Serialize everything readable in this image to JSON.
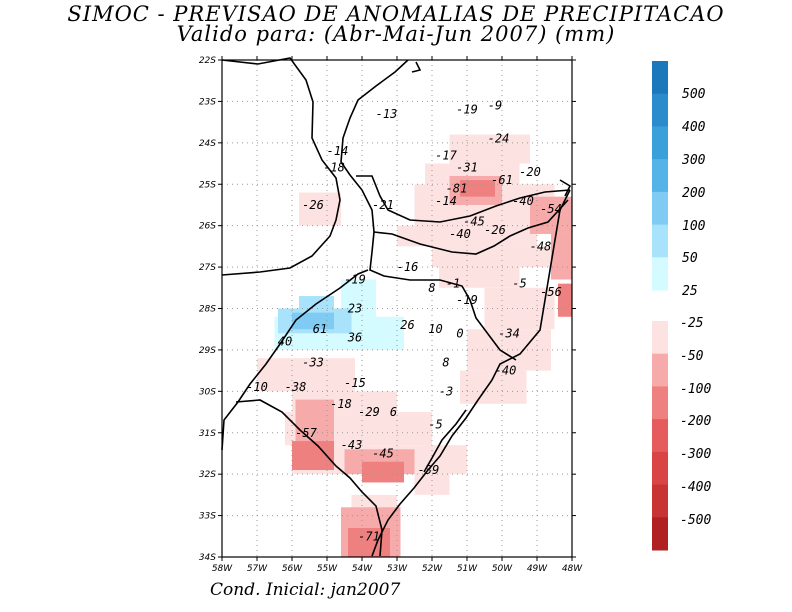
{
  "title": {
    "line1": "SIMOC - PREVISAO DE ANOMALIAS DE PRECIPITACAO",
    "line2": "Valido para: (Abr-Mai-Jun 2007) (mm)"
  },
  "footer": "Cond. Inicial: jan2007",
  "lat_labels": [
    "22S",
    "23S",
    "24S",
    "25S",
    "26S",
    "27S",
    "28S",
    "29S",
    "30S",
    "31S",
    "32S",
    "33S",
    "34S"
  ],
  "lon_labels": [
    "58W",
    "57W",
    "56W",
    "55W",
    "54W",
    "53W",
    "52W",
    "51W",
    "50W",
    "49W",
    "48W"
  ],
  "colorbar": {
    "positive": [
      {
        "label": "500",
        "color": "#1a78bb"
      },
      {
        "label": "400",
        "color": "#2a8ccb"
      },
      {
        "label": "300",
        "color": "#3aa0da"
      },
      {
        "label": "200",
        "color": "#54b4e8"
      },
      {
        "label": "100",
        "color": "#7fcbf4"
      },
      {
        "label": "50",
        "color": "#a8e2fb"
      },
      {
        "label": "25",
        "color": "#d4fbff"
      }
    ],
    "negative": [
      {
        "label": "-25",
        "color": "#fde2e2"
      },
      {
        "label": "-50",
        "color": "#f6aaaa"
      },
      {
        "label": "-100",
        "color": "#ef8080"
      },
      {
        "label": "-200",
        "color": "#e65c5c"
      },
      {
        "label": "-300",
        "color": "#d94444"
      },
      {
        "label": "-400",
        "color": "#c83434"
      },
      {
        "label": "-500",
        "color": "#b02020"
      }
    ]
  },
  "map_values": [
    {
      "text": "-13",
      "lon": -53.3,
      "lat": -23.3
    },
    {
      "text": "-19",
      "lon": -51.0,
      "lat": -23.2
    },
    {
      "text": "-9",
      "lon": -50.2,
      "lat": -23.1
    },
    {
      "text": "-24",
      "lon": -50.1,
      "lat": -23.9
    },
    {
      "text": "-14",
      "lon": -54.7,
      "lat": -24.2
    },
    {
      "text": "-18",
      "lon": -54.8,
      "lat": -24.6
    },
    {
      "text": "-17",
      "lon": -51.6,
      "lat": -24.3
    },
    {
      "text": "-31",
      "lon": -51.0,
      "lat": -24.6
    },
    {
      "text": "-20",
      "lon": -49.2,
      "lat": -24.7
    },
    {
      "text": "-61",
      "lon": -50.0,
      "lat": -24.9
    },
    {
      "text": "-81",
      "lon": -51.3,
      "lat": -25.1
    },
    {
      "text": "-40",
      "lon": -49.4,
      "lat": -25.4
    },
    {
      "text": "-54",
      "lon": -48.6,
      "lat": -25.6
    },
    {
      "text": "-14",
      "lon": -51.6,
      "lat": -25.4
    },
    {
      "text": "-26",
      "lon": -55.4,
      "lat": -25.5
    },
    {
      "text": "-21",
      "lon": -53.4,
      "lat": -25.5
    },
    {
      "text": "-45",
      "lon": -50.8,
      "lat": -25.9
    },
    {
      "text": "-26",
      "lon": -50.2,
      "lat": -26.1
    },
    {
      "text": "-40",
      "lon": -51.2,
      "lat": -26.2
    },
    {
      "text": "-48",
      "lon": -48.9,
      "lat": -26.5
    },
    {
      "text": "-16",
      "lon": -52.7,
      "lat": -27.0
    },
    {
      "text": "-19",
      "lon": -54.2,
      "lat": -27.3
    },
    {
      "text": "8",
      "lon": -52.0,
      "lat": -27.5
    },
    {
      "text": "-1",
      "lon": -51.4,
      "lat": -27.4
    },
    {
      "text": "-5",
      "lon": -49.5,
      "lat": -27.4
    },
    {
      "text": "-56",
      "lon": -48.6,
      "lat": -27.6
    },
    {
      "text": "-19",
      "lon": -51.0,
      "lat": -27.8
    },
    {
      "text": "23",
      "lon": -54.2,
      "lat": -28.0
    },
    {
      "text": "26",
      "lon": -52.7,
      "lat": -28.4
    },
    {
      "text": "10",
      "lon": -51.9,
      "lat": -28.5
    },
    {
      "text": "0",
      "lon": -51.2,
      "lat": -28.6
    },
    {
      "text": "-34",
      "lon": -49.8,
      "lat": -28.6
    },
    {
      "text": "61",
      "lon": -55.2,
      "lat": -28.5
    },
    {
      "text": "36",
      "lon": -54.2,
      "lat": -28.7
    },
    {
      "text": "40",
      "lon": -56.2,
      "lat": -28.8
    },
    {
      "text": "-33",
      "lon": -55.4,
      "lat": -29.3
    },
    {
      "text": "8",
      "lon": -51.6,
      "lat": -29.3
    },
    {
      "text": "-40",
      "lon": -49.9,
      "lat": -29.5
    },
    {
      "text": "-10",
      "lon": -57.0,
      "lat": -29.9
    },
    {
      "text": "-38",
      "lon": -55.9,
      "lat": -29.9
    },
    {
      "text": "-15",
      "lon": -54.2,
      "lat": -29.8
    },
    {
      "text": "-3",
      "lon": -51.6,
      "lat": -30.0
    },
    {
      "text": "-18",
      "lon": -54.6,
      "lat": -30.3
    },
    {
      "text": "-29",
      "lon": -53.8,
      "lat": -30.5
    },
    {
      "text": "6",
      "lon": -53.1,
      "lat": -30.5
    },
    {
      "text": "-5",
      "lon": -51.9,
      "lat": -30.8
    },
    {
      "text": "-57",
      "lon": -55.6,
      "lat": -31.0
    },
    {
      "text": "-43",
      "lon": -54.3,
      "lat": -31.3
    },
    {
      "text": "-45",
      "lon": -53.4,
      "lat": -31.5
    },
    {
      "text": "-39",
      "lon": -52.1,
      "lat": -31.9
    },
    {
      "text": "-71",
      "lon": -53.8,
      "lat": -33.5
    }
  ],
  "shaded_regions": [
    {
      "color": "#fde2e2",
      "cells": [
        [
          -51.5,
          -24.5,
          -49.2,
          -23.8
        ],
        [
          -52.2,
          -25.0,
          -49.5,
          -24.5
        ],
        [
          -52.5,
          -26.0,
          -48.5,
          -25.0
        ],
        [
          -53.0,
          -26.5,
          -49.0,
          -26.0
        ],
        [
          -52.0,
          -27.0,
          -48.5,
          -26.5
        ],
        [
          -51.8,
          -27.5,
          -49.5,
          -27.0
        ],
        [
          -55.8,
          -26.0,
          -54.6,
          -25.2
        ],
        [
          -50.5,
          -28.5,
          -48.5,
          -27.5
        ],
        [
          -51.0,
          -29.5,
          -48.6,
          -28.5
        ],
        [
          -51.2,
          -30.3,
          -49.3,
          -29.5
        ],
        [
          -57.0,
          -30.0,
          -54.2,
          -29.2
        ],
        [
          -56.0,
          -30.5,
          -53.0,
          -30.0
        ],
        [
          -56.2,
          -31.3,
          -52.0,
          -30.5
        ],
        [
          -56.0,
          -32.0,
          -51.0,
          -31.3
        ],
        [
          -52.5,
          -32.5,
          -51.5,
          -32.0
        ],
        [
          -54.3,
          -33.0,
          -53.0,
          -32.5
        ]
      ]
    },
    {
      "color": "#f6aaaa",
      "cells": [
        [
          -51.5,
          -25.5,
          -50.0,
          -24.8
        ],
        [
          -49.2,
          -26.2,
          -48.0,
          -25.3
        ],
        [
          -48.6,
          -27.3,
          -48.0,
          -26.2
        ],
        [
          -55.9,
          -31.5,
          -54.8,
          -30.2
        ],
        [
          -54.5,
          -32.0,
          -52.5,
          -31.4
        ],
        [
          -54.6,
          -34.0,
          -52.9,
          -32.8
        ]
      ]
    },
    {
      "color": "#ef8080",
      "cells": [
        [
          -51.2,
          -25.3,
          -50.2,
          -24.9
        ],
        [
          -48.4,
          -28.2,
          -48.0,
          -27.4
        ],
        [
          -56.0,
          -31.9,
          -54.8,
          -31.2
        ],
        [
          -54.0,
          -32.2,
          -52.8,
          -31.7
        ],
        [
          -54.4,
          -34.0,
          -53.2,
          -33.3
        ]
      ]
    },
    {
      "color": "#d4fbff",
      "cells": [
        [
          -56.5,
          -29.0,
          -52.8,
          -28.2
        ],
        [
          -54.6,
          -28.4,
          -53.6,
          -27.3
        ]
      ]
    },
    {
      "color": "#a8e2fb",
      "cells": [
        [
          -56.4,
          -28.6,
          -54.3,
          -28.0
        ],
        [
          -55.8,
          -28.2,
          -54.8,
          -27.7
        ]
      ]
    },
    {
      "color": "#7fcbf4",
      "cells": [
        [
          -56.0,
          -28.5,
          -54.8,
          -28.1
        ]
      ]
    }
  ]
}
